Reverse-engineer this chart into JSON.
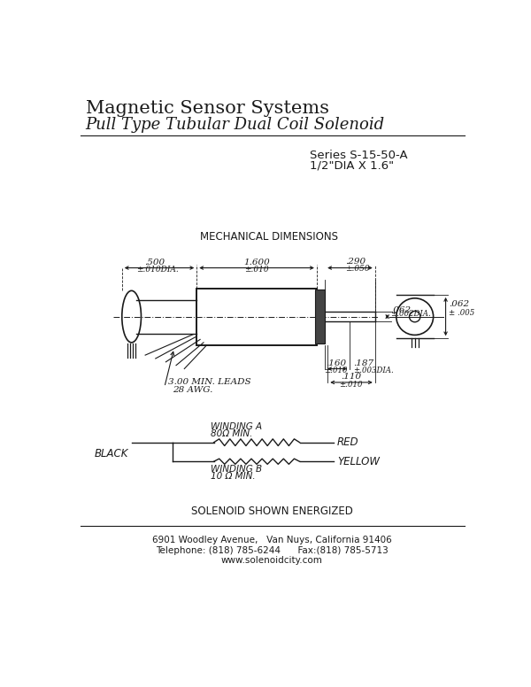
{
  "title1": "Magnetic Sensor Systems",
  "title2": "Pull Type Tubular Dual Coil Solenoid",
  "series_line1": "Series S-15-50-A",
  "series_line2": "1/2\"DIA X 1.6\"",
  "mech_dim_title": "MECHANICAL DIMENSIONS",
  "dim_500": ".500",
  "dim_500b": "±.010DIA.",
  "dim_1600": "1.600",
  "dim_1600b": "±.010",
  "dim_290": ".290",
  "dim_290b": "±.050",
  "dim_062dia": ".062",
  "dim_062diab": "±.002DIA.",
  "dim_062right": ".062",
  "dim_062rightb": "± .005",
  "dim_160": ".160",
  "dim_160b": "±.010",
  "dim_187": ".187",
  "dim_187b": "±.003DIA.",
  "dim_110": ".110",
  "dim_110b": "±.010",
  "leads_text1": "3.00 MIN. LEADS",
  "leads_text2": "28 AWG.",
  "winding_a": "WINDING A",
  "winding_a_ohm": "80Ω MIN.",
  "winding_b": "WINDING B",
  "winding_b_ohm": "10 Ω MIN.",
  "black_label": "BLACK",
  "red_label": "RED",
  "yellow_label": "YELLOW",
  "energized_text": "SOLENOID SHOWN ENERGIZED",
  "footer1": "6901 Woodley Avenue,   Van Nuys, California 91406",
  "footer2": "Telephone: (818) 785-6244      Fax:(818) 785-5713",
  "footer3": "www.solenoidcity.com",
  "bg_color": "#ffffff",
  "line_color": "#1a1a1a",
  "text_color": "#1a1a1a"
}
